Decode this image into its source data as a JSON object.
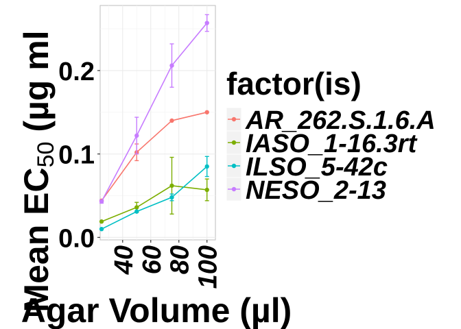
{
  "chart_data": {
    "type": "line",
    "xlabel": "Agar Volume (µl)",
    "ylabel_main": "Mean EC",
    "ylabel_sub": "50",
    "ylabel_unit": " (µg ml",
    "x_ticks": [
      40,
      60,
      80,
      100
    ],
    "y_ticks": [
      0.0,
      0.1,
      0.2
    ],
    "y_tick_labels": [
      "0.0",
      "0.1",
      "0.2"
    ],
    "xlim": [
      24,
      106
    ],
    "ylim": [
      -0.003,
      0.278
    ],
    "grid": true,
    "legend": {
      "title": "factor(is)",
      "position": "right",
      "entries": [
        "AR_262.S.1.6.A",
        "IASO_1-16.3rt",
        "ILSO_5-42c",
        "NESO_2-13"
      ]
    },
    "x": [
      25,
      50,
      75,
      100
    ],
    "series": [
      {
        "name": "AR_262.S.1.6.A",
        "color": "#F8766D",
        "values": [
          0.044,
          0.102,
          0.14,
          0.15
        ],
        "err": [
          0.001,
          0.01,
          0.0,
          0.0
        ]
      },
      {
        "name": "IASO_1-16.3rt",
        "color": "#7CAE00",
        "values": [
          0.019,
          0.036,
          0.062,
          0.057
        ],
        "err": [
          0.0,
          0.006,
          0.034,
          0.013
        ]
      },
      {
        "name": "ILSO_5-42c",
        "color": "#00BFC4",
        "values": [
          0.01,
          0.031,
          0.048,
          0.085
        ],
        "err": [
          0.0,
          0.0,
          0.004,
          0.012
        ]
      },
      {
        "name": "NESO_2-13",
        "color": "#C77CFF",
        "values": [
          0.043,
          0.122,
          0.206,
          0.257
        ],
        "err": [
          0.002,
          0.022,
          0.026,
          0.01
        ]
      }
    ]
  }
}
